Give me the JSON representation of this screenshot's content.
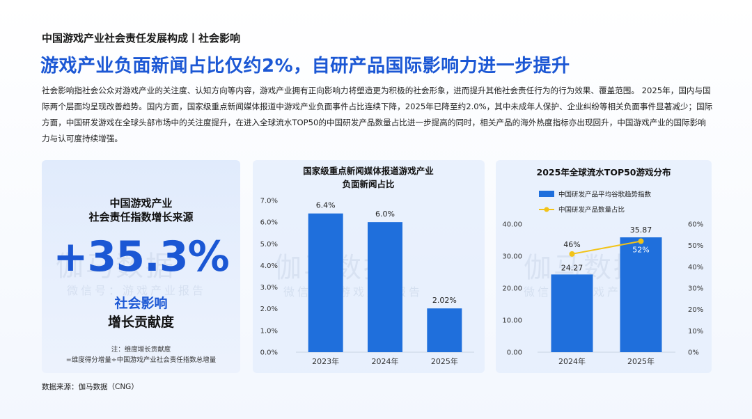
{
  "header": {
    "subtitle": "中国游戏产业社会责任发展构成丨社会影响",
    "headline": "游戏产业负面新闻占比仅约2%，自研产品国际影响力进一步提升",
    "intro": "社会影响指社会公众对游戏产业的关注度、认知方向等内容，游戏产业拥有正向影响力将塑造更为积极的社会形象，进而提升其他社会责任行为的行为效果、覆盖范围。 2025年，国内与国际两个层面均呈现改善趋势。国内方面，国家级重点新闻媒体报道中游戏产业负面事件占比连续下降，2025年已降至约2.0%，其中未成年人保护、企业纠纷等相关负面事件显著减少；国际方面，中国研发游戏在全球头部市场中的关注度提升，在进入全球流水TOP50的中国研发产品数量占比进一步提高的同时，相关产品的海外热度指标亦出现回升，中国游戏产业的国际影响力与认可度持续增强。"
  },
  "kpi": {
    "title_line1": "中国游戏产业",
    "title_line2": "社会责任指数增长来源",
    "value": "+35.3%",
    "label_blue": "社会影响",
    "label_black": "增长贡献度",
    "note_line1": "注：维度增长贡献度",
    "note_line2": "=维度得分增量÷中国游戏产业社会责任指数总增量"
  },
  "watermark": {
    "main": "伽马数据",
    "sub": "微信号：游戏产业报告"
  },
  "source": "数据来源：伽马数据（CNG）",
  "colors": {
    "accent": "#1b57d4",
    "bar": "#1f6fdc",
    "line": "#f2c318"
  },
  "chart_data": [
    {
      "type": "bar",
      "title_line1": "国家级重点新闻媒体报道游戏产业",
      "title_line2": "负面新闻占比",
      "categories": [
        "2023年",
        "2024年",
        "2025年"
      ],
      "values": [
        6.4,
        6.0,
        2.02
      ],
      "value_labels": [
        "6.4%",
        "6.0%",
        "2.02%"
      ],
      "yticks": [
        "0.0%",
        "1.0%",
        "2.0%",
        "3.0%",
        "4.0%",
        "5.0%",
        "6.0%",
        "7.0%"
      ],
      "ylim": [
        0,
        7
      ],
      "unit": "%"
    },
    {
      "type": "bar+line",
      "title": "2025年全球流水TOP50游戏分布",
      "categories": [
        "2024年",
        "2025年"
      ],
      "series": [
        {
          "name": "中国研发产品平均谷歌趋势指数",
          "kind": "bar",
          "values": [
            24.27,
            35.87
          ],
          "value_labels": [
            "24.27",
            "35.87"
          ]
        },
        {
          "name": "中国研发产品数量占比",
          "kind": "line",
          "values": [
            46,
            52
          ],
          "value_labels": [
            "46%",
            "52%"
          ]
        }
      ],
      "yticks_left": [
        "0.00",
        "10.00",
        "20.00",
        "30.00",
        "40.00"
      ],
      "yticks_right": [
        "0%",
        "10%",
        "20%",
        "30%",
        "40%",
        "50%",
        "60%"
      ],
      "ylim_left": [
        0,
        40
      ],
      "ylim_right": [
        0,
        60
      ]
    }
  ]
}
